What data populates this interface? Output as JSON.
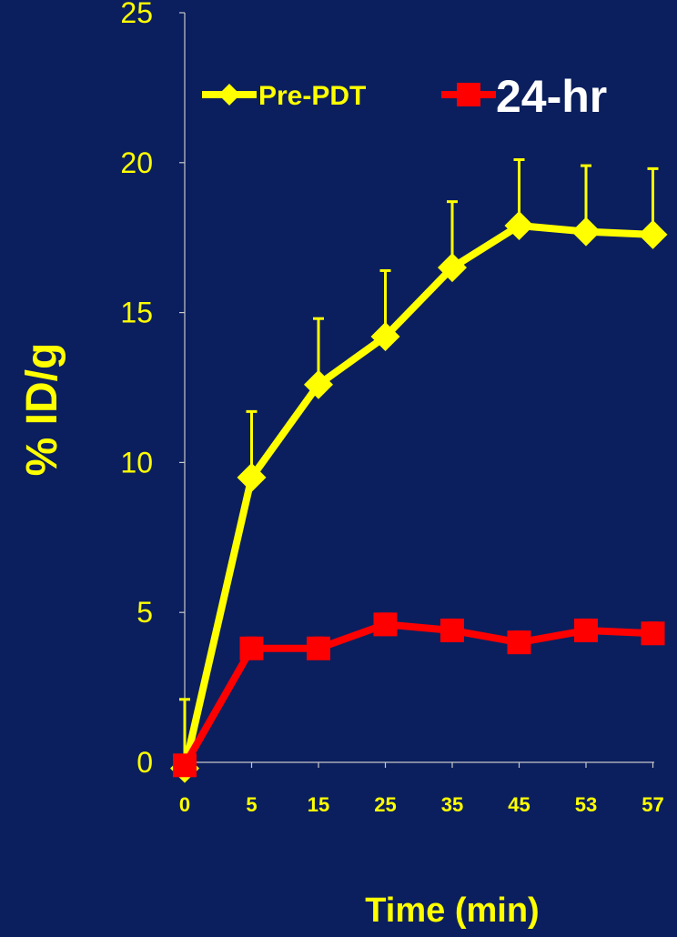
{
  "chart_data": {
    "type": "line",
    "title": "",
    "xlabel": "Time (min)",
    "ylabel": "% ID/g",
    "categories": [
      "0",
      "5",
      "15",
      "25",
      "35",
      "45",
      "53",
      "57"
    ],
    "y_ticks": [
      "0",
      "5",
      "10",
      "15",
      "20",
      "25"
    ],
    "ylim": [
      0,
      25
    ],
    "grid": false,
    "legend_position": "top",
    "series": [
      {
        "name": "Pre-PDT",
        "color": "#ffff00",
        "marker": "diamond",
        "values": [
          -0.2,
          9.5,
          12.6,
          14.2,
          16.5,
          17.9,
          17.7,
          17.6
        ],
        "error_upper": [
          2.3,
          2.2,
          2.2,
          2.2,
          2.2,
          2.2,
          2.2,
          2.2
        ]
      },
      {
        "name": "24-hr",
        "color": "#ff0000",
        "marker": "square",
        "values": [
          -0.1,
          3.8,
          3.8,
          4.6,
          4.4,
          4.0,
          4.4,
          4.3
        ],
        "error_upper": [
          0,
          0.35,
          0.35,
          0.35,
          0.35,
          0.35,
          0.35,
          0.35
        ]
      }
    ]
  }
}
